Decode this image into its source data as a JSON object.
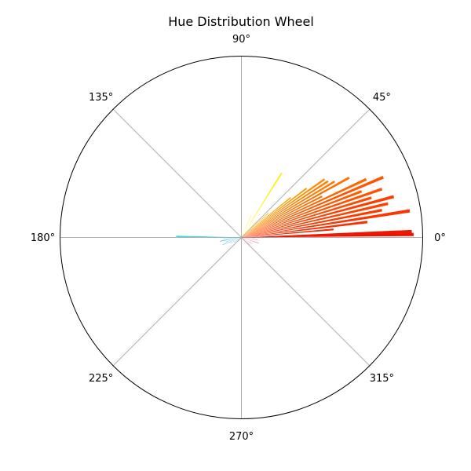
{
  "chart_data": {
    "type": "bar",
    "subtype": "polar",
    "title": "Hue Distribution Wheel",
    "theta_unit": "degrees",
    "angular_ticks": [
      {
        "angle": 0,
        "label": "0°"
      },
      {
        "angle": 45,
        "label": "45°"
      },
      {
        "angle": 90,
        "label": "90°"
      },
      {
        "angle": 135,
        "label": "135°"
      },
      {
        "angle": 180,
        "label": "180°"
      },
      {
        "angle": 225,
        "label": "225°"
      },
      {
        "angle": 270,
        "label": "270°"
      },
      {
        "angle": 315,
        "label": "315°"
      }
    ],
    "radial_range": [
      0,
      1
    ],
    "radial_tick_labels": false,
    "grid": true,
    "bars": [
      {
        "hue": 1,
        "value": 0.95,
        "color": "#ee1100"
      },
      {
        "hue": 2,
        "value": 0.94,
        "color": "#ee1800"
      },
      {
        "hue": 5,
        "value": 0.51,
        "color": "#f22a00"
      },
      {
        "hue": 7,
        "value": 0.7,
        "color": "#f63000"
      },
      {
        "hue": 9,
        "value": 0.94,
        "color": "#ff3300"
      },
      {
        "hue": 11,
        "value": 0.79,
        "color": "#fc3a00"
      },
      {
        "hue": 13,
        "value": 0.83,
        "color": "#fd4200"
      },
      {
        "hue": 15,
        "value": 0.87,
        "color": "#fe3c00"
      },
      {
        "hue": 17,
        "value": 0.75,
        "color": "#ff4800"
      },
      {
        "hue": 19,
        "value": 0.82,
        "color": "#ff5200"
      },
      {
        "hue": 21,
        "value": 0.71,
        "color": "#ff5a00"
      },
      {
        "hue": 23,
        "value": 0.85,
        "color": "#ff5500"
      },
      {
        "hue": 25,
        "value": 0.76,
        "color": "#ff6600"
      },
      {
        "hue": 27,
        "value": 0.5,
        "color": "#ff6e00"
      },
      {
        "hue": 29,
        "value": 0.68,
        "color": "#ff7200"
      },
      {
        "hue": 31,
        "value": 0.6,
        "color": "#ff7a00"
      },
      {
        "hue": 33,
        "value": 0.57,
        "color": "#ff8000"
      },
      {
        "hue": 35,
        "value": 0.56,
        "color": "#ff8c00"
      },
      {
        "hue": 37,
        "value": 0.45,
        "color": "#ff9600"
      },
      {
        "hue": 39,
        "value": 0.35,
        "color": "#ffa000"
      },
      {
        "hue": 42,
        "value": 0.2,
        "color": "#ffb000"
      },
      {
        "hue": 46,
        "value": 0.12,
        "color": "#ffc400"
      },
      {
        "hue": 58,
        "value": 0.42,
        "color": "#ffee00"
      },
      {
        "hue": 66,
        "value": 0.13,
        "color": "#f2f200"
      },
      {
        "hue": 179,
        "value": 0.36,
        "color": "#33dddd"
      },
      {
        "hue": 185,
        "value": 0.1,
        "color": "#33ccee"
      },
      {
        "hue": 190,
        "value": 0.12,
        "color": "#3399ee"
      },
      {
        "hue": 196,
        "value": 0.09,
        "color": "#44bbee"
      },
      {
        "hue": 201,
        "value": 0.11,
        "color": "#33aadd"
      },
      {
        "hue": 208,
        "value": 0.07,
        "color": "#3388dd"
      },
      {
        "hue": 215,
        "value": 0.05,
        "color": "#4477cc"
      },
      {
        "hue": 228,
        "value": 0.03,
        "color": "#5566cc"
      },
      {
        "hue": 300,
        "value": 0.04,
        "color": "#dd55cc"
      },
      {
        "hue": 318,
        "value": 0.06,
        "color": "#ee44aa"
      },
      {
        "hue": 330,
        "value": 0.07,
        "color": "#ee4499"
      },
      {
        "hue": 342,
        "value": 0.1,
        "color": "#ee3388"
      },
      {
        "hue": 352,
        "value": 0.09,
        "color": "#ee3366"
      }
    ]
  }
}
